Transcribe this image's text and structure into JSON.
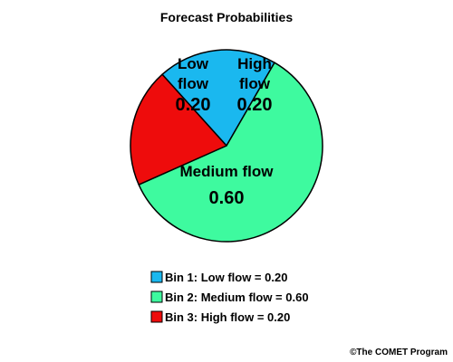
{
  "chart_data": {
    "type": "pie",
    "title": "Forecast Probabilities",
    "slices": [
      {
        "name": "Low flow",
        "value": 0.2,
        "value_label": "0.20",
        "label_lines": [
          "Low",
          "flow"
        ],
        "legend": "Bin 1: Low flow = 0.20",
        "color": "#1ab8ef"
      },
      {
        "name": "Medium flow",
        "value": 0.6,
        "value_label": "0.60",
        "label_lines": [
          "Medium flow"
        ],
        "legend": "Bin 2: Medium flow = 0.60",
        "color": "#3efa9f"
      },
      {
        "name": "High flow",
        "value": 0.2,
        "value_label": "0.20",
        "label_lines": [
          "High",
          "flow"
        ],
        "legend": "Bin 3: High flow = 0.20",
        "color": "#ee0c0c"
      }
    ],
    "legend_placement": "bottom-center"
  },
  "credit": "©The COMET Program"
}
